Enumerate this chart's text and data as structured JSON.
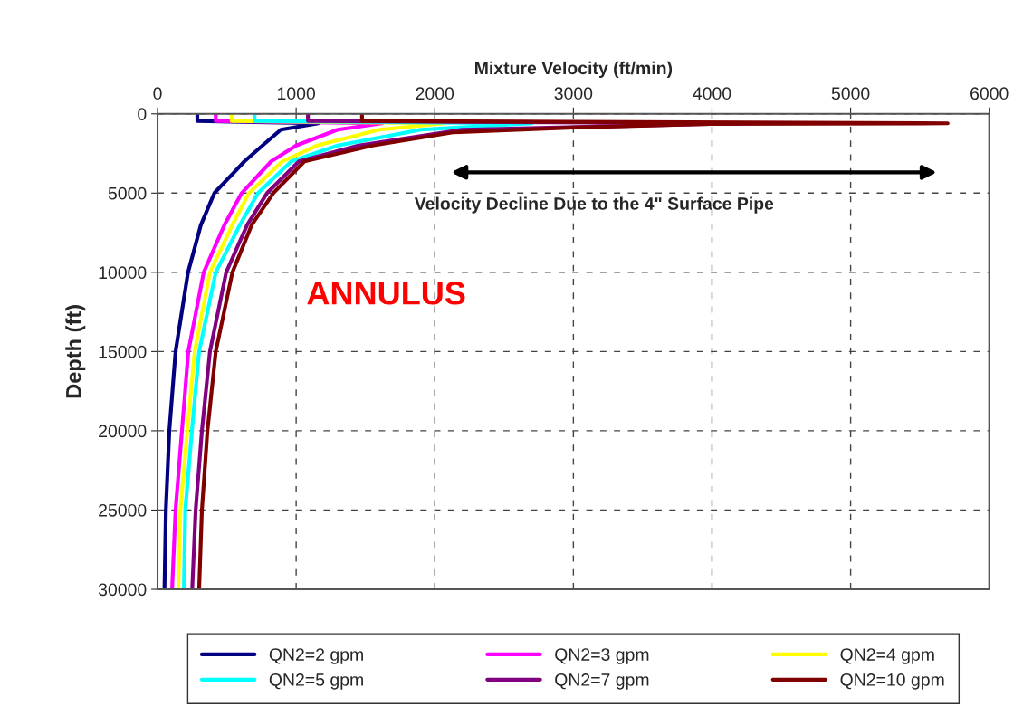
{
  "chart_data": {
    "type": "line",
    "xlabel": "Mixture Velocity (ft/min)",
    "ylabel": "Depth (ft)",
    "xlim": [
      0,
      6000
    ],
    "xticks": [
      0,
      1000,
      2000,
      3000,
      4000,
      5000,
      6000
    ],
    "ylim": [
      30000,
      0
    ],
    "yticks": [
      0,
      5000,
      10000,
      15000,
      20000,
      25000,
      30000
    ],
    "grid": true,
    "legend": "bottom",
    "line_style": "solid",
    "marker": "none",
    "annotations": [
      "Velocity Decline Due to the 4\" Surface Pipe",
      "ANNULUS"
    ],
    "series": [
      {
        "name": "QN2=2 gpm",
        "color": "#000080",
        "x": [
          287,
          287,
          1160,
          890,
          757,
          627,
          410,
          313,
          220,
          130,
          85,
          60,
          50
        ],
        "values": [
          0,
          450,
          600,
          1000,
          2000,
          3000,
          5000,
          7000,
          10000,
          15000,
          20000,
          25000,
          30000
        ]
      },
      {
        "name": "QN2=3 gpm",
        "color": "#ff00ff",
        "x": [
          420,
          420,
          1620,
          1300,
          1000,
          820,
          607,
          483,
          333,
          222,
          176,
          130,
          105
        ],
        "values": [
          0,
          450,
          600,
          1000,
          2000,
          3000,
          5000,
          7000,
          10000,
          15000,
          20000,
          25000,
          30000
        ]
      },
      {
        "name": "QN2=4 gpm",
        "color": "#ffff00",
        "x": [
          535,
          535,
          2070,
          1600,
          1150,
          900,
          660,
          540,
          378,
          268,
          215,
          165,
          150
        ],
        "values": [
          0,
          450,
          600,
          1000,
          2000,
          3000,
          5000,
          7000,
          10000,
          15000,
          20000,
          25000,
          30000
        ]
      },
      {
        "name": "QN2=5 gpm",
        "color": "#00ffff",
        "x": [
          700,
          700,
          2700,
          1900,
          1300,
          965,
          725,
          595,
          420,
          300,
          248,
          200,
          190
        ],
        "values": [
          0,
          450,
          600,
          1000,
          2000,
          3000,
          5000,
          7000,
          10000,
          15000,
          20000,
          25000,
          30000
        ]
      },
      {
        "name": "QN2=7 gpm",
        "color": "#800080",
        "x": [
          1085,
          1085,
          4190,
          2200,
          1450,
          1020,
          790,
          647,
          495,
          378,
          320,
          275,
          250
        ],
        "values": [
          0,
          450,
          600,
          1000,
          2000,
          3000,
          5000,
          7000,
          10000,
          15000,
          20000,
          25000,
          30000
        ]
      },
      {
        "name": "QN2=10 gpm",
        "color": "#800000",
        "x": [
          1475,
          1475,
          5700,
          4000,
          3000,
          2130,
          1550,
          1060,
          835,
          680,
          540,
          420,
          360,
          320,
          300
        ],
        "values": [
          0,
          450,
          600,
          630,
          860,
          1170,
          2000,
          3000,
          5000,
          7000,
          10000,
          15000,
          20000,
          25000,
          30000
        ]
      }
    ]
  }
}
